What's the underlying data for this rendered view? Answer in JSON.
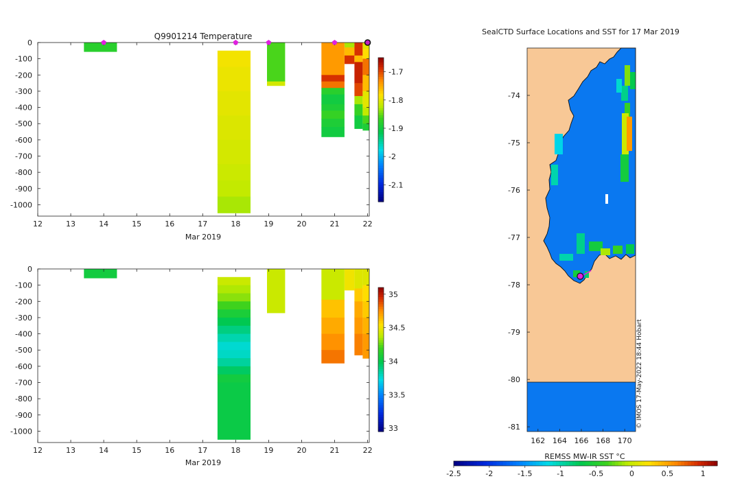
{
  "chart_data": [
    {
      "type": "heatmap",
      "title": "Q9901214  Temperature",
      "xlabel": "Mar 2019",
      "ylabel": "",
      "xlim": [
        12,
        22.05
      ],
      "ylim": [
        -1070,
        0
      ],
      "x_ticks": [
        "12",
        "13",
        "14",
        "15",
        "16",
        "17",
        "18",
        "19",
        "20",
        "21",
        "22"
      ],
      "y_ticks": [
        "0",
        "-100",
        "-200",
        "-300",
        "-400",
        "-500",
        "-600",
        "-700",
        "-800",
        "-900",
        "-1000"
      ],
      "colorbar": {
        "range": [
          -2.16,
          -1.65
        ],
        "ticks": [
          "-1.7",
          "-1.8",
          "-1.9",
          "-2",
          "-2.1"
        ],
        "tick_values": [
          -1.7,
          -1.8,
          -1.9,
          -2,
          -2.1
        ]
      },
      "markers": {
        "color": "#e020e0",
        "x": [
          14,
          18,
          19,
          21,
          22
        ]
      },
      "last_marker": {
        "x": 22,
        "color": "#c020c0"
      },
      "columns": [
        {
          "x0": 13.4,
          "x1": 14.4,
          "segments": [
            [
              0,
              -55,
              -1.88
            ]
          ]
        },
        {
          "x0": 17.45,
          "x1": 18.45,
          "segments": [
            [
              -50,
              -150,
              -1.79
            ],
            [
              -150,
              -300,
              -1.795
            ],
            [
              -300,
              -450,
              -1.8
            ],
            [
              -450,
              -600,
              -1.805
            ],
            [
              -600,
              -750,
              -1.81
            ],
            [
              -750,
              -850,
              -1.815
            ],
            [
              -850,
              -950,
              -1.82
            ],
            [
              -950,
              -1050,
              -1.83
            ]
          ]
        },
        {
          "x0": 18.95,
          "x1": 19.5,
          "segments": [
            [
              0,
              -240,
              -1.86
            ],
            [
              -240,
              -265,
              -1.81
            ]
          ]
        },
        {
          "x0": 20.6,
          "x1": 21.3,
          "segments": [
            [
              0,
              -200,
              -1.74
            ],
            [
              -200,
              -240,
              -1.69
            ],
            [
              -240,
              -280,
              -1.72
            ],
            [
              -280,
              -320,
              -1.88
            ],
            [
              -320,
              -380,
              -1.9
            ],
            [
              -380,
              -420,
              -1.89
            ],
            [
              -420,
              -470,
              -1.87
            ],
            [
              -470,
              -520,
              -1.89
            ],
            [
              -520,
              -580,
              -1.9
            ]
          ]
        },
        {
          "x0": 21.3,
          "x1": 21.6,
          "segments": [
            [
              0,
              -30,
              -1.83
            ],
            [
              -30,
              -80,
              -1.76
            ],
            [
              -80,
              -130,
              -1.69
            ]
          ]
        },
        {
          "x0": 21.6,
          "x1": 21.85,
          "segments": [
            [
              0,
              -80,
              -1.69
            ],
            [
              -80,
              -120,
              -1.76
            ],
            [
              -120,
              -250,
              -1.68
            ],
            [
              -250,
              -330,
              -1.7
            ],
            [
              -330,
              -380,
              -1.83
            ],
            [
              -380,
              -450,
              -1.87
            ],
            [
              -450,
              -530,
              -1.9
            ]
          ]
        },
        {
          "x0": 21.85,
          "x1": 22.05,
          "segments": [
            [
              0,
              -40,
              -1.8
            ],
            [
              -40,
              -100,
              -1.78
            ],
            [
              -100,
              -200,
              -1.72
            ],
            [
              -200,
              -300,
              -1.76
            ],
            [
              -300,
              -400,
              -1.8
            ],
            [
              -400,
              -450,
              -1.82
            ],
            [
              -450,
              -500,
              -1.86
            ],
            [
              -500,
              -540,
              -1.89
            ]
          ]
        }
      ]
    },
    {
      "type": "heatmap",
      "title": "",
      "xlabel": "Mar 2019",
      "ylabel": "",
      "xlim": [
        12,
        22.05
      ],
      "ylim": [
        -1070,
        0
      ],
      "x_ticks": [
        "12",
        "13",
        "14",
        "15",
        "16",
        "17",
        "18",
        "19",
        "20",
        "21",
        "22"
      ],
      "y_ticks": [
        "0",
        "-100",
        "-200",
        "-300",
        "-400",
        "-500",
        "-600",
        "-700",
        "-800",
        "-900",
        "-1000"
      ],
      "colorbar": {
        "range": [
          32.95,
          35.1
        ],
        "ticks": [
          "35",
          "34.5",
          "34",
          "33.5",
          "33"
        ],
        "tick_values": [
          35,
          34.5,
          34,
          33.5,
          33
        ]
      },
      "columns": [
        {
          "x0": 13.4,
          "x1": 14.4,
          "segments": [
            [
              0,
              -55,
              34.05
            ]
          ]
        },
        {
          "x0": 17.45,
          "x1": 18.45,
          "segments": [
            [
              -50,
              -100,
              34.4
            ],
            [
              -100,
              -150,
              34.35
            ],
            [
              -150,
              -200,
              34.3
            ],
            [
              -200,
              -250,
              34.2
            ],
            [
              -250,
              -300,
              34.08
            ],
            [
              -300,
              -350,
              33.98
            ],
            [
              -350,
              -400,
              33.9
            ],
            [
              -400,
              -450,
              33.82
            ],
            [
              -450,
              -500,
              33.76
            ],
            [
              -500,
              -550,
              33.78
            ],
            [
              -550,
              -600,
              33.85
            ],
            [
              -600,
              -650,
              33.95
            ],
            [
              -650,
              -700,
              34.05
            ],
            [
              -700,
              -1050,
              34.02
            ]
          ]
        },
        {
          "x0": 18.95,
          "x1": 19.5,
          "segments": [
            [
              0,
              -270,
              34.4
            ]
          ]
        },
        {
          "x0": 20.6,
          "x1": 21.3,
          "segments": [
            [
              0,
              -190,
              34.4
            ],
            [
              -190,
              -300,
              34.62
            ],
            [
              -300,
              -400,
              34.68
            ],
            [
              -400,
              -500,
              34.74
            ],
            [
              -500,
              -580,
              34.8
            ]
          ]
        },
        {
          "x0": 21.3,
          "x1": 21.6,
          "segments": [
            [
              0,
              -130,
              34.5
            ]
          ]
        },
        {
          "x0": 21.6,
          "x1": 21.85,
          "segments": [
            [
              0,
              -120,
              34.45
            ],
            [
              -120,
              -200,
              34.6
            ],
            [
              -200,
              -300,
              34.68
            ],
            [
              -300,
              -400,
              34.72
            ],
            [
              -400,
              -530,
              34.78
            ]
          ]
        },
        {
          "x0": 21.85,
          "x1": 22.05,
          "segments": [
            [
              0,
              -100,
              34.45
            ],
            [
              -100,
              -200,
              34.55
            ],
            [
              -200,
              -300,
              34.6
            ],
            [
              -300,
              -400,
              34.66
            ],
            [
              -400,
              -550,
              34.72
            ]
          ]
        }
      ]
    },
    {
      "type": "map",
      "title": "SealCTD Surface Locations and SST for 17 Mar 2019",
      "xlim": [
        161,
        171
      ],
      "ylim": [
        -81.1,
        -73.0
      ],
      "x_ticks": [
        "162",
        "164",
        "166",
        "168",
        "170"
      ],
      "y_ticks": [
        "-74",
        "-75",
        "-76",
        "-77",
        "-78",
        "-79",
        "-80",
        "-81"
      ],
      "land_color": "#f8c896",
      "sea_ice_color": "#0a78f0",
      "ice_shelf_edge_lat": -80,
      "track_lon": [
        166.9,
        166.0
      ],
      "track_lat": [
        -77.7,
        -77.82
      ],
      "final_position": {
        "lon": 165.9,
        "lat": -77.82
      },
      "credit": "© IMOS 17-May-2022 18:44 Hobart",
      "colorbar": {
        "label": "REMSS MW-IR SST °C",
        "range": [
          -2.5,
          1.2
        ],
        "ticks": [
          "-2.5",
          "-2",
          "-1.5",
          "-1",
          "-0.5",
          "0",
          "0.5",
          "1"
        ],
        "tick_values": [
          -2.5,
          -2,
          -1.5,
          -1,
          -0.5,
          0,
          0.5,
          1
        ]
      }
    }
  ]
}
